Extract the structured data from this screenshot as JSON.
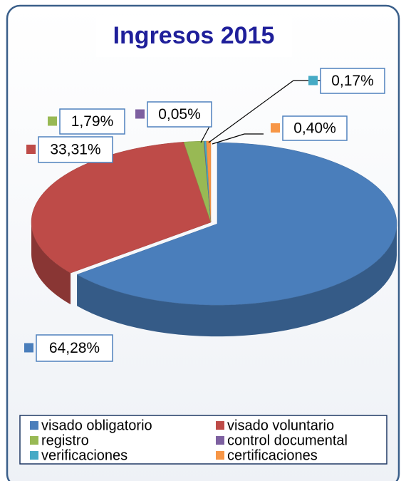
{
  "chart_data": {
    "type": "pie3d",
    "title": "Ingresos 2015",
    "categories": [
      "visado obligatorio",
      "visado voluntario",
      "registro",
      "control documental",
      "verificaciones",
      "certificaciones"
    ],
    "values": [
      64.28,
      33.31,
      1.79,
      0.05,
      0.17,
      0.4
    ],
    "value_labels": [
      "64,28%",
      "33,31%",
      "1,79%",
      "0,05%",
      "0,17%",
      "0,40%"
    ],
    "colors": [
      "#4a7ebb",
      "#be4b48",
      "#98b954",
      "#7d60a0",
      "#46aac5",
      "#f79646"
    ],
    "legend": "bottom"
  }
}
